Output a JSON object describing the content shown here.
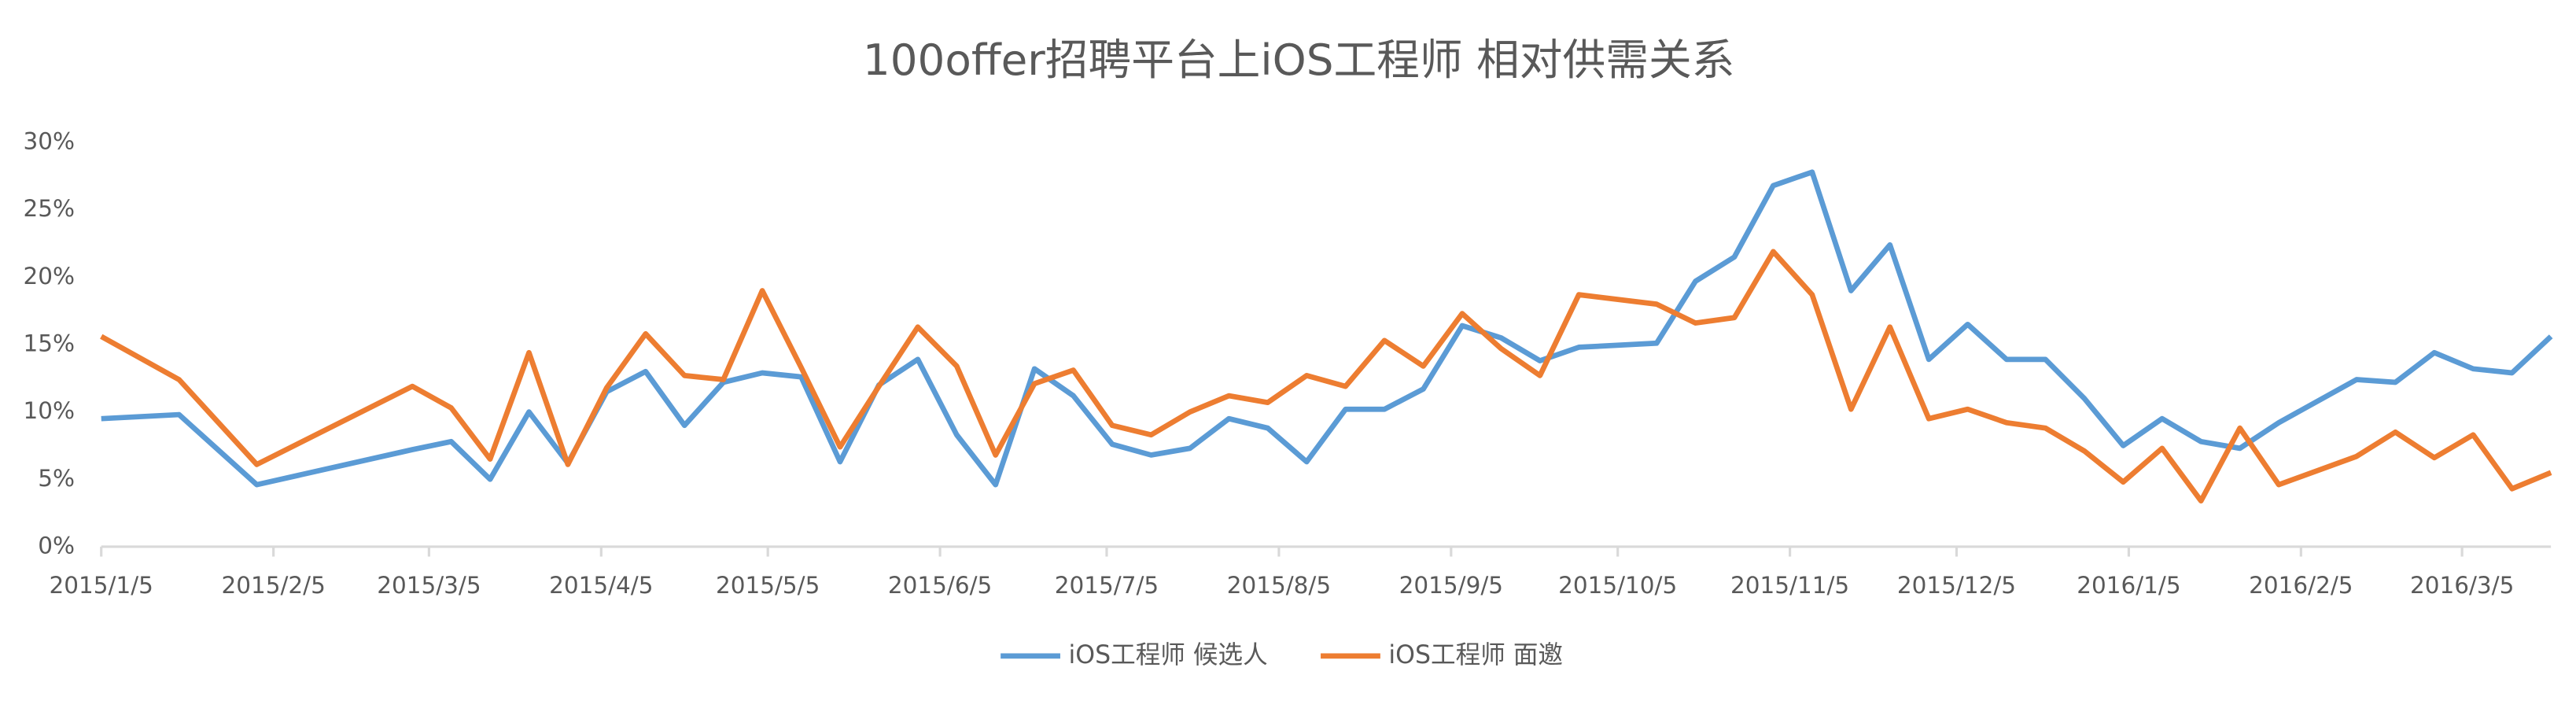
{
  "chart_data": {
    "type": "line",
    "title": "100offer招聘平台上iOS工程师 相对供需关系",
    "x": [
      "2015/1/5",
      "2015/1/19",
      "2015/2/2",
      "2015/3/2",
      "2015/3/9",
      "2015/3/16",
      "2015/3/23",
      "2015/3/30",
      "2015/4/6",
      "2015/4/13",
      "2015/4/20",
      "2015/4/27",
      "2015/5/4",
      "2015/5/11",
      "2015/5/18",
      "2015/5/25",
      "2015/6/1",
      "2015/6/8",
      "2015/6/15",
      "2015/6/22",
      "2015/6/29",
      "2015/7/6",
      "2015/7/13",
      "2015/7/20",
      "2015/7/27",
      "2015/8/3",
      "2015/8/10",
      "2015/8/17",
      "2015/8/24",
      "2015/8/31",
      "2015/9/7",
      "2015/9/14",
      "2015/9/21",
      "2015/9/28",
      "2015/10/12",
      "2015/10/19",
      "2015/10/26",
      "2015/11/2",
      "2015/11/9",
      "2015/11/16",
      "2015/11/23",
      "2015/11/30",
      "2015/12/7",
      "2015/12/14",
      "2015/12/21",
      "2015/12/28",
      "2016/1/4",
      "2016/1/11",
      "2016/1/18",
      "2016/1/25",
      "2016/2/1",
      "2016/2/15",
      "2016/2/22",
      "2016/2/29",
      "2016/3/7",
      "2016/3/14",
      "2016/3/21"
    ],
    "series": [
      {
        "name": "iOS工程师 候选人",
        "color": "#5b9bd5",
        "values": [
          9.5,
          9.8,
          4.6,
          7.2,
          7.8,
          5.0,
          10.0,
          6.2,
          11.5,
          13.0,
          9.0,
          12.2,
          12.9,
          12.6,
          6.3,
          12.0,
          13.9,
          8.3,
          4.6,
          13.2,
          11.2,
          7.6,
          6.8,
          7.3,
          9.5,
          8.8,
          6.3,
          10.2,
          10.2,
          11.7,
          16.4,
          15.5,
          13.8,
          14.8,
          15.1,
          19.7,
          21.5,
          26.8,
          27.8,
          19.0,
          22.4,
          13.9,
          16.5,
          13.9,
          13.9,
          11.0,
          7.5,
          9.5,
          7.8,
          7.3,
          9.2,
          12.4,
          12.2,
          14.4,
          13.2,
          12.9,
          15.6
        ]
      },
      {
        "name": "iOS工程师 面邀",
        "color": "#ed7d31",
        "values": [
          15.6,
          12.4,
          6.1,
          11.9,
          10.3,
          6.5,
          14.4,
          6.1,
          11.8,
          15.8,
          12.7,
          12.4,
          19.0,
          13.3,
          7.4,
          11.9,
          16.3,
          13.4,
          6.8,
          12.1,
          13.1,
          9.0,
          8.3,
          10.0,
          11.2,
          10.7,
          12.7,
          11.9,
          15.3,
          13.4,
          17.3,
          14.7,
          12.7,
          18.7,
          18.0,
          16.6,
          17.0,
          21.9,
          18.7,
          10.2,
          16.3,
          9.5,
          10.2,
          9.2,
          8.8,
          7.1,
          4.8,
          7.3,
          3.4,
          8.8,
          4.6,
          6.7,
          8.5,
          6.6,
          8.3,
          4.3,
          5.5
        ]
      }
    ],
    "xlim": [
      "2015/1/5",
      "2016/3/21"
    ],
    "xticks": [
      "2015/1/5",
      "2015/2/5",
      "2015/3/5",
      "2015/4/5",
      "2015/5/5",
      "2015/6/5",
      "2015/7/5",
      "2015/8/5",
      "2015/9/5",
      "2015/10/5",
      "2015/11/5",
      "2015/12/5",
      "2016/1/5",
      "2016/2/5",
      "2016/3/5"
    ],
    "ylim": [
      0,
      30
    ],
    "yticks": [
      {
        "value": 0,
        "label": "0%"
      },
      {
        "value": 5,
        "label": "5%"
      },
      {
        "value": 10,
        "label": "10%"
      },
      {
        "value": 15,
        "label": "15%"
      },
      {
        "value": 20,
        "label": "20%"
      },
      {
        "value": 25,
        "label": "25%"
      },
      {
        "value": 30,
        "label": "30%"
      }
    ],
    "grid": false,
    "legend": "bottom"
  }
}
